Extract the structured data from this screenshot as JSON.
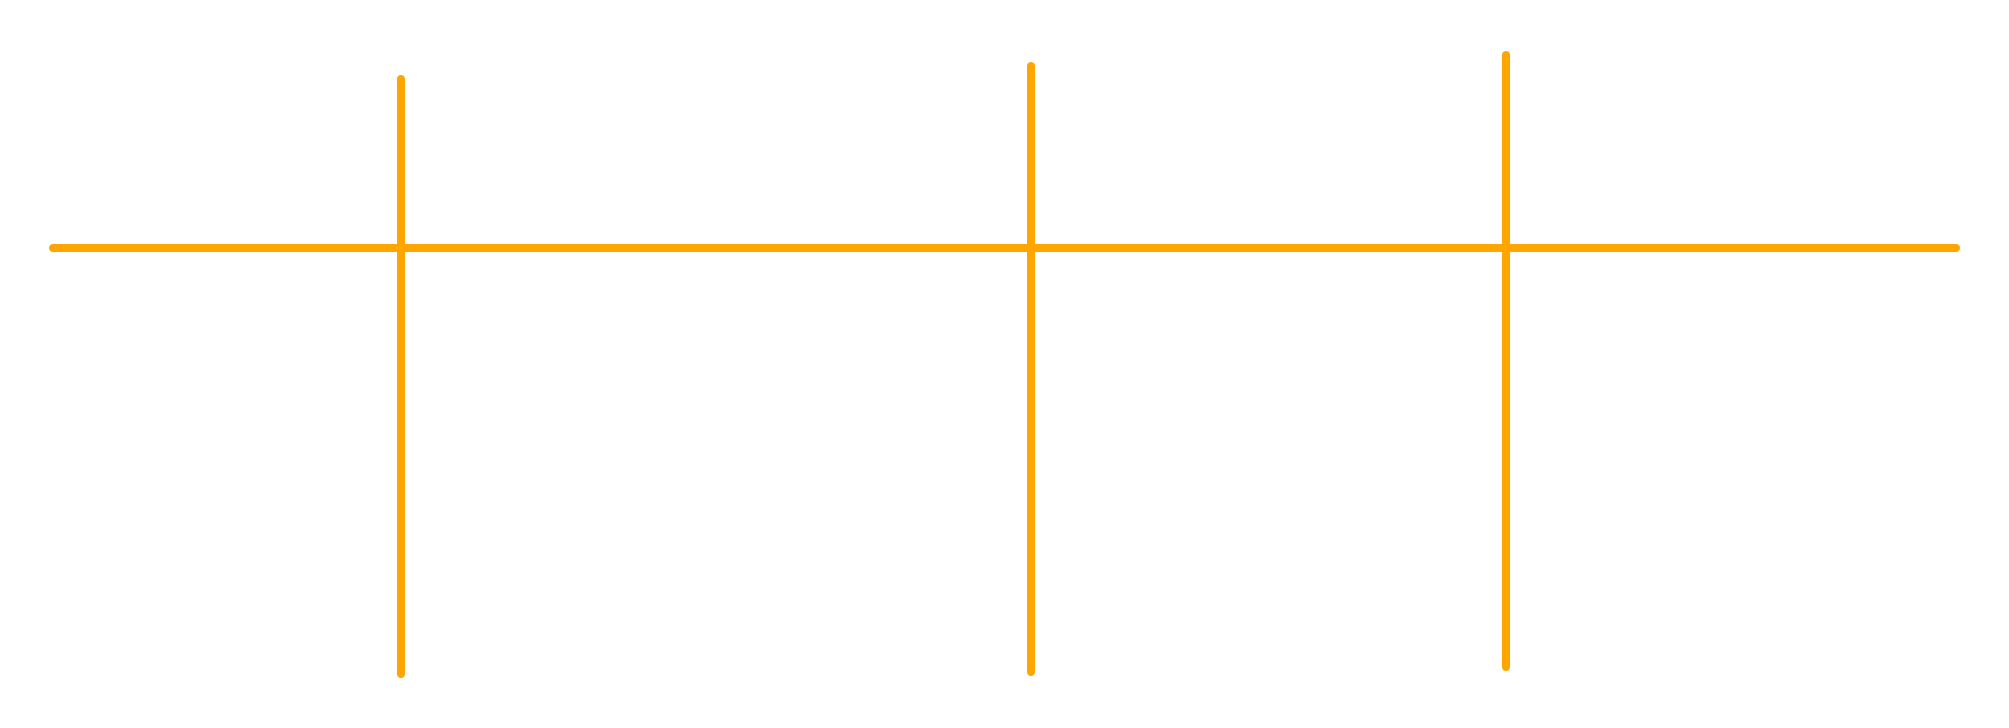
{
  "diagram": {
    "line_color": "#FFA500",
    "background_color": "#FFFFFF",
    "elements": [
      {
        "kind": "horizontal-line"
      },
      {
        "kind": "vertical-line"
      },
      {
        "kind": "vertical-line"
      },
      {
        "kind": "vertical-line"
      }
    ]
  }
}
